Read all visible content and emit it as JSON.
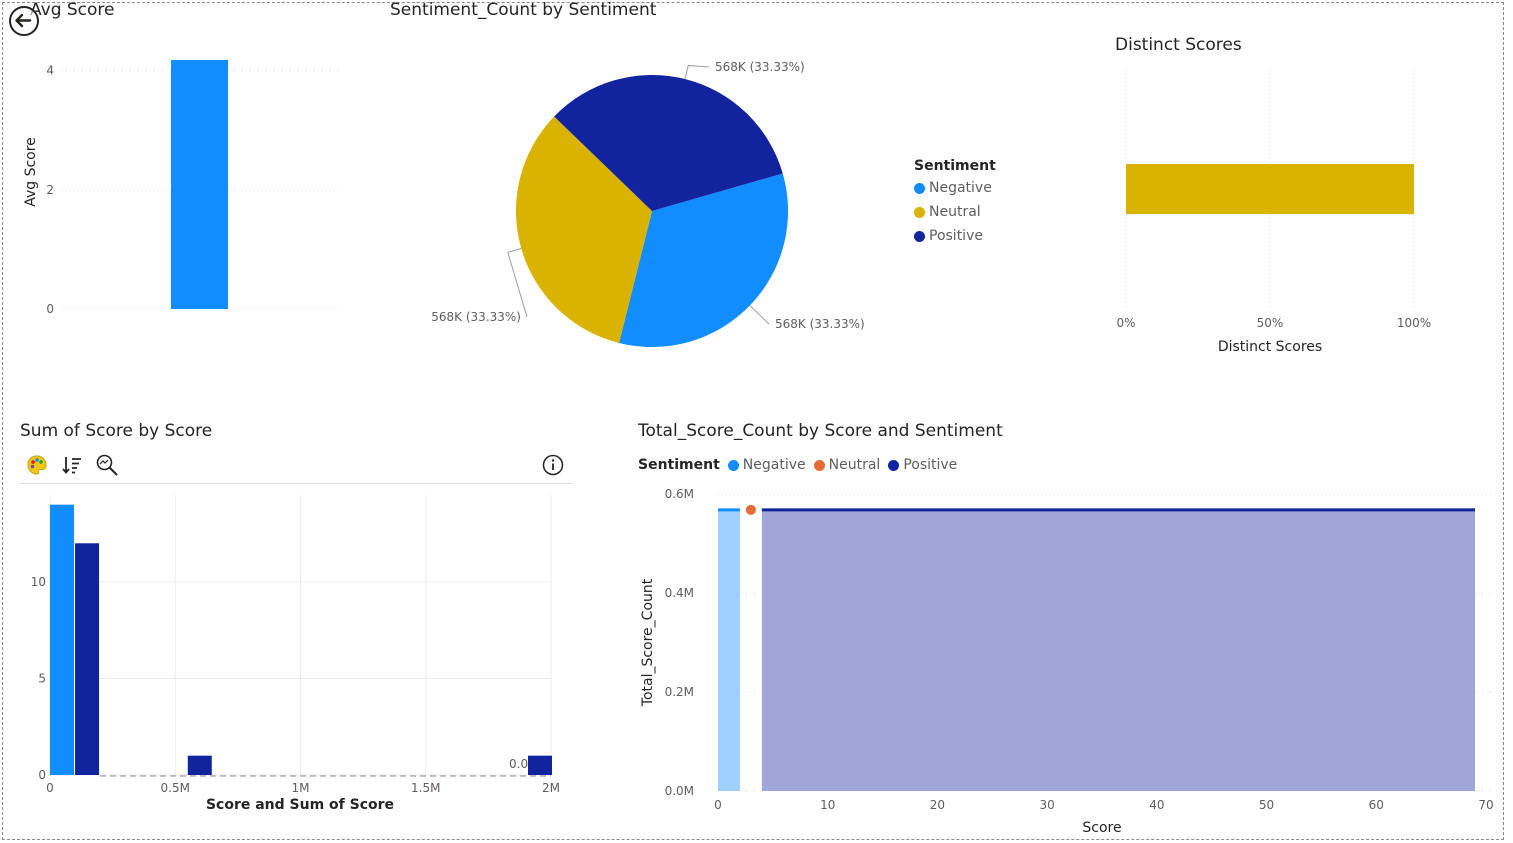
{
  "colors": {
    "negative": "#118dff",
    "neutral": "#d9b300",
    "positive": "#12239e",
    "neutral_line": "#e66c37",
    "negative_area": "#9fcfff",
    "positive_area": "#a0a6d8",
    "grid": "#e1dfdd"
  },
  "icons": {
    "back": "arrow-left-circle-icon",
    "palette": "palette-icon",
    "sort": "sort-descending-icon",
    "zoom": "magnifier-icon",
    "info": "info-icon"
  },
  "legend_sentiment": {
    "title": "Sentiment",
    "items": [
      "Negative",
      "Neutral",
      "Positive"
    ]
  },
  "chart_data": [
    {
      "type": "bar",
      "title": "Avg Score",
      "ylabel": "Avg Score",
      "xlabel": "",
      "categories": [
        ""
      ],
      "values": [
        4.18
      ],
      "ylim": [
        0,
        4.6
      ],
      "yticks": [
        "0",
        "2",
        "4"
      ]
    },
    {
      "type": "pie",
      "title": "Sentiment_Count by Sentiment",
      "labels": [
        "Negative",
        "Neutral",
        "Positive"
      ],
      "values": [
        568000,
        568000,
        568000
      ],
      "data_labels": [
        "568K (33.33%)",
        "568K (33.33%)",
        "568K (33.33%)"
      ],
      "legend": "right"
    },
    {
      "type": "bar",
      "orientation": "horizontal",
      "title": "Distinct Scores",
      "xlabel": "Distinct Scores",
      "values": [
        1.0
      ],
      "xlim": [
        0,
        1
      ],
      "xticks": [
        "0%",
        "50%",
        "100%"
      ]
    },
    {
      "type": "bar",
      "title": "Sum of Score by Score",
      "xlabel": "Score  and Sum of Score",
      "xticks": [
        "0",
        "0.5M",
        "1M",
        "1.5M",
        "2M"
      ],
      "yticks": [
        "0",
        "5",
        "10"
      ],
      "bars": [
        {
          "x": 0,
          "y": 14,
          "series": "Negative"
        },
        {
          "x": 100000,
          "y": 12,
          "series": "Positive"
        },
        {
          "x": 550000,
          "y": 1,
          "series": "Positive"
        },
        {
          "x": 1950000,
          "y": 1,
          "series": "Positive"
        }
      ],
      "data_labels": [
        "0.0"
      ],
      "xlim": [
        0,
        2000000
      ],
      "ylim": [
        0,
        14.5
      ]
    },
    {
      "type": "area",
      "title": "Total_Score_Count by Score and Sentiment",
      "xlabel": "Score",
      "ylabel": "Total_Score_Count",
      "xlim": [
        0,
        70
      ],
      "ylim": [
        0,
        0.6
      ],
      "xticks": [
        "0",
        "10",
        "20",
        "30",
        "40",
        "50",
        "60",
        "70"
      ],
      "yticks": [
        "0.0M",
        "0.2M",
        "0.4M",
        "0.6M"
      ],
      "legend": "top-left",
      "series": [
        {
          "name": "Negative",
          "x": [
            0,
            2
          ],
          "values": [
            0.568,
            0.568
          ]
        },
        {
          "name": "Neutral",
          "x": [
            3
          ],
          "values": [
            0.568
          ]
        },
        {
          "name": "Positive",
          "x": [
            4,
            69
          ],
          "values": [
            0.568,
            0.568
          ]
        }
      ]
    }
  ]
}
